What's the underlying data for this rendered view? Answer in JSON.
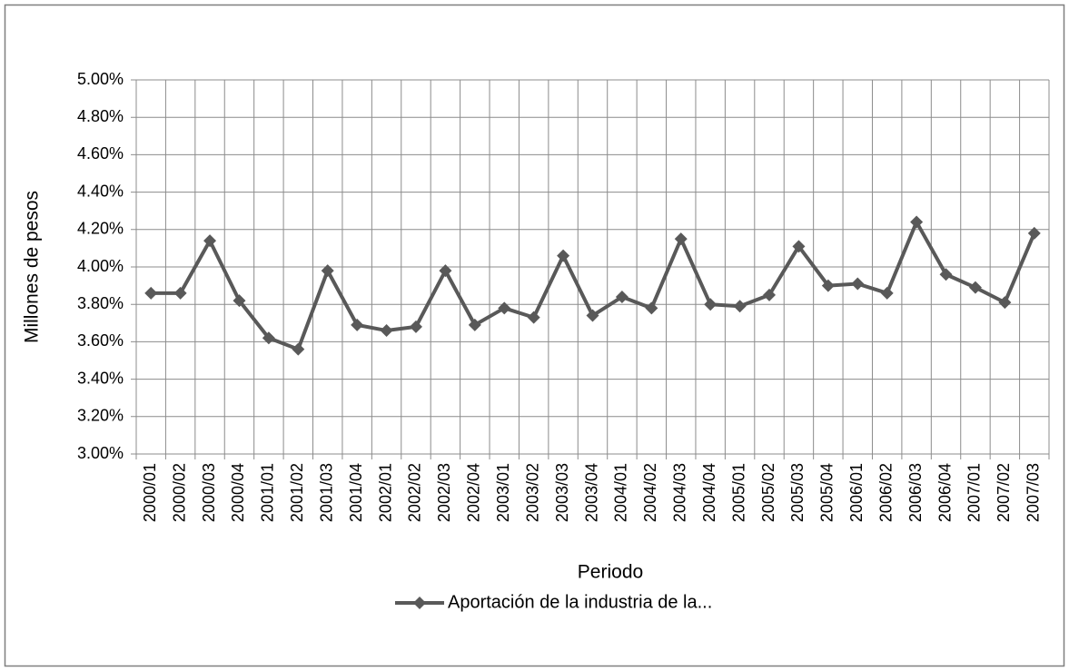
{
  "chart_data": {
    "type": "line",
    "x_label": "Periodo",
    "y_label": "Millones de pesos",
    "categories": [
      "2000/01",
      "2000/02",
      "2000/03",
      "2000/04",
      "2001/01",
      "2001/02",
      "2001/03",
      "2001/04",
      "2002/01",
      "2002/02",
      "2002/03",
      "2002/04",
      "2003/01",
      "2003/02",
      "2003/03",
      "2003/04",
      "2004/01",
      "2004/02",
      "2004/03",
      "2004/04",
      "2005/01",
      "2005/02",
      "2005/03",
      "2005/04",
      "2006/01",
      "2006/02",
      "2006/03",
      "2006/04",
      "2007/01",
      "2007/02",
      "2007/03"
    ],
    "series": [
      {
        "name": "Aportación de la industria de la...",
        "color": "#595959",
        "values": [
          3.86,
          3.86,
          4.14,
          3.82,
          3.62,
          3.56,
          3.98,
          3.69,
          3.66,
          3.68,
          3.98,
          3.69,
          3.78,
          3.73,
          4.06,
          3.74,
          3.84,
          3.78,
          4.15,
          3.8,
          3.79,
          3.85,
          4.11,
          3.9,
          3.91,
          3.86,
          4.24,
          3.96,
          3.89,
          3.81,
          4.18
        ]
      }
    ],
    "ylim": [
      3.0,
      5.0
    ],
    "yticks": [
      {
        "value": 3.0,
        "label": "3.00%"
      },
      {
        "value": 3.2,
        "label": "3.20%"
      },
      {
        "value": 3.4,
        "label": "3.40%"
      },
      {
        "value": 3.6,
        "label": "3.60%"
      },
      {
        "value": 3.8,
        "label": "3.80%"
      },
      {
        "value": 4.0,
        "label": "4.00%"
      },
      {
        "value": 4.2,
        "label": "4.20%"
      },
      {
        "value": 4.4,
        "label": "4.40%"
      },
      {
        "value": 4.6,
        "label": "4.60%"
      },
      {
        "value": 4.8,
        "label": "4.80%"
      },
      {
        "value": 5.0,
        "label": "5.00%"
      }
    ],
    "grid": true,
    "legend": "bottom"
  }
}
